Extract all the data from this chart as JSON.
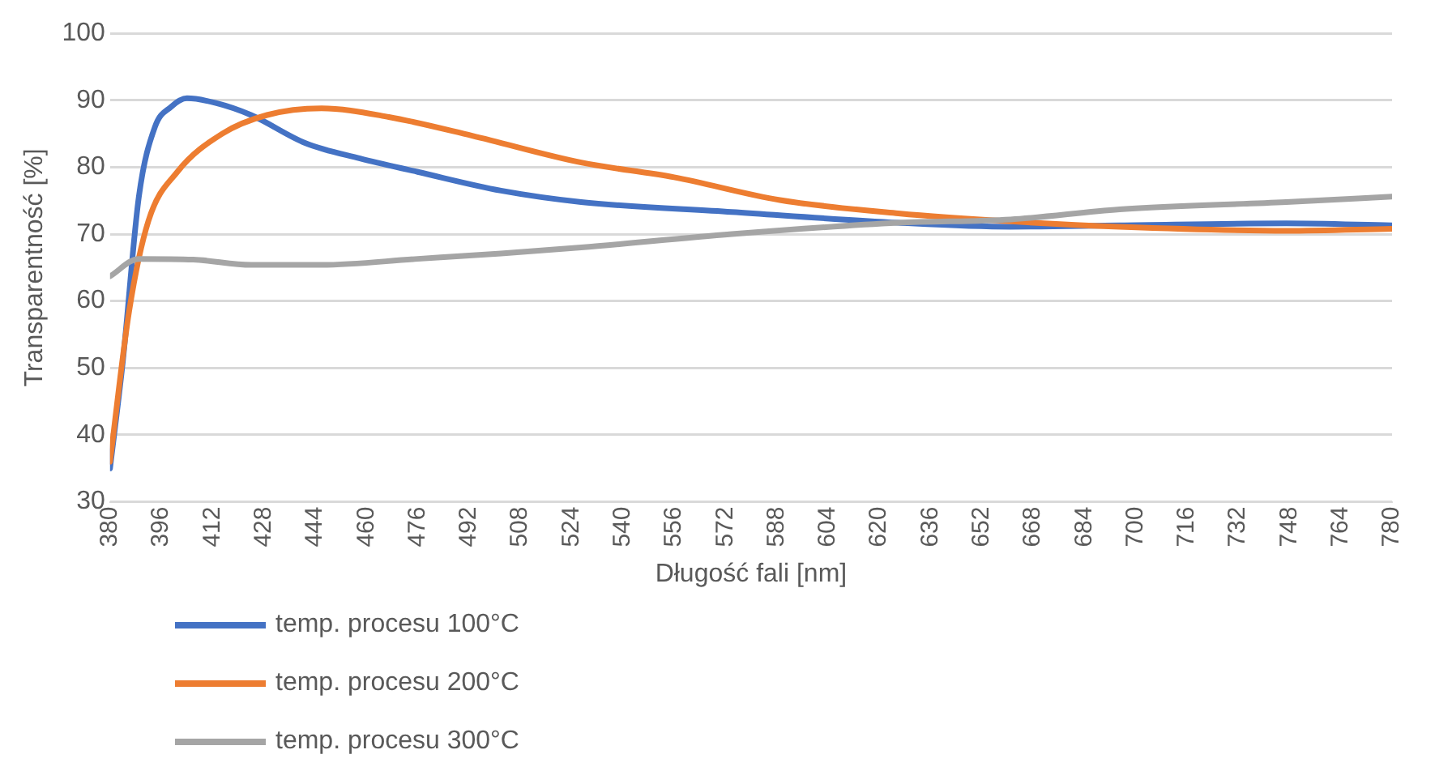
{
  "chart_data": {
    "type": "line",
    "xlabel": "Długość fali [nm]",
    "ylabel": "Transparentność [%]",
    "xlim": [
      380,
      780
    ],
    "xticks": [
      380,
      396,
      412,
      428,
      444,
      460,
      476,
      492,
      508,
      524,
      540,
      556,
      572,
      588,
      604,
      620,
      636,
      652,
      668,
      684,
      700,
      716,
      732,
      748,
      764,
      780
    ],
    "ylim": [
      30,
      100
    ],
    "yticks": [
      30,
      40,
      50,
      60,
      70,
      80,
      90,
      100
    ],
    "grid": "y",
    "legend": "bottom",
    "marker": "none",
    "line_style": "solid",
    "series": [
      {
        "name": "temp. procesu 100°C",
        "color": "#4472c4",
        "x": [
          380,
          384,
          389,
          394,
          399,
          404,
          413,
          424,
          441,
          458,
          476,
          502,
          527,
          574,
          626,
          661,
          695,
          747,
          780
        ],
        "values": [
          35,
          51,
          75.6,
          86,
          89,
          90.3,
          89.6,
          87.8,
          83.6,
          81.3,
          79.3,
          76.5,
          74.8,
          73.3,
          71.7,
          71.1,
          71.3,
          71.6,
          71.3
        ]
      },
      {
        "name": "temp. procesu 200°C",
        "color": "#ed7d31",
        "x": [
          380,
          386,
          392,
          401,
          415,
          429,
          446,
          467,
          493,
          527,
          556,
          589,
          626,
          661,
          695,
          747,
          780
        ],
        "values": [
          36,
          58.6,
          72,
          79.3,
          85,
          87.8,
          88.8,
          87.5,
          84.7,
          80.7,
          78.5,
          75.1,
          73.1,
          71.9,
          71.1,
          70.5,
          70.8
        ]
      },
      {
        "name": "temp. procesu 300°C",
        "color": "#a5a5a5",
        "x": [
          380,
          389,
          406,
          424,
          446,
          476,
          502,
          527,
          574,
          626,
          661,
          695,
          747,
          780
        ],
        "values": [
          63.7,
          66.3,
          66.2,
          65.4,
          65.4,
          66.3,
          67.1,
          68,
          70,
          71.7,
          72.2,
          73.7,
          74.8,
          75.6
        ]
      }
    ]
  }
}
